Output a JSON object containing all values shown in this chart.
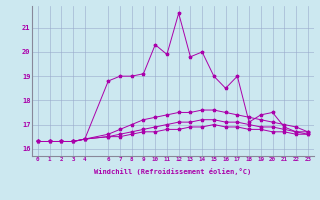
{
  "xlabel": "Windchill (Refroidissement éolien,°C)",
  "ylabel": "",
  "xlim": [
    -0.5,
    23.5
  ],
  "ylim": [
    15.7,
    21.9
  ],
  "xticks": [
    0,
    1,
    2,
    3,
    4,
    6,
    7,
    8,
    9,
    10,
    11,
    12,
    13,
    14,
    15,
    16,
    17,
    18,
    19,
    20,
    21,
    22,
    23
  ],
  "yticks": [
    16,
    17,
    18,
    19,
    20,
    21
  ],
  "background_color": "#cce8f0",
  "line_color": "#aa00aa",
  "grid_color": "#99aacc",
  "line1_x": [
    0,
    1,
    2,
    3,
    4,
    6,
    7,
    8,
    9,
    10,
    11,
    12,
    13,
    14,
    15,
    16,
    17,
    18,
    19,
    20,
    21,
    22,
    23
  ],
  "line1_y": [
    16.3,
    16.3,
    16.3,
    16.3,
    16.4,
    18.8,
    19.0,
    19.0,
    19.1,
    20.3,
    19.9,
    21.6,
    19.8,
    20.0,
    19.0,
    18.5,
    19.0,
    17.1,
    17.4,
    17.5,
    16.9,
    16.7,
    16.7
  ],
  "line2_x": [
    0,
    1,
    2,
    3,
    4,
    6,
    7,
    8,
    9,
    10,
    11,
    12,
    13,
    14,
    15,
    16,
    17,
    18,
    19,
    20,
    21,
    22,
    23
  ],
  "line2_y": [
    16.3,
    16.3,
    16.3,
    16.3,
    16.4,
    16.6,
    16.8,
    17.0,
    17.2,
    17.3,
    17.4,
    17.5,
    17.5,
    17.6,
    17.6,
    17.5,
    17.4,
    17.3,
    17.2,
    17.1,
    17.0,
    16.9,
    16.7
  ],
  "line3_x": [
    0,
    1,
    2,
    3,
    4,
    6,
    7,
    8,
    9,
    10,
    11,
    12,
    13,
    14,
    15,
    16,
    17,
    18,
    19,
    20,
    21,
    22,
    23
  ],
  "line3_y": [
    16.3,
    16.3,
    16.3,
    16.3,
    16.4,
    16.5,
    16.6,
    16.7,
    16.8,
    16.9,
    17.0,
    17.1,
    17.1,
    17.2,
    17.2,
    17.1,
    17.1,
    17.0,
    16.9,
    16.9,
    16.8,
    16.7,
    16.6
  ],
  "line4_x": [
    0,
    1,
    2,
    3,
    4,
    6,
    7,
    8,
    9,
    10,
    11,
    12,
    13,
    14,
    15,
    16,
    17,
    18,
    19,
    20,
    21,
    22,
    23
  ],
  "line4_y": [
    16.3,
    16.3,
    16.3,
    16.3,
    16.4,
    16.5,
    16.5,
    16.6,
    16.7,
    16.7,
    16.8,
    16.8,
    16.9,
    16.9,
    17.0,
    16.9,
    16.9,
    16.8,
    16.8,
    16.7,
    16.7,
    16.6,
    16.6
  ]
}
